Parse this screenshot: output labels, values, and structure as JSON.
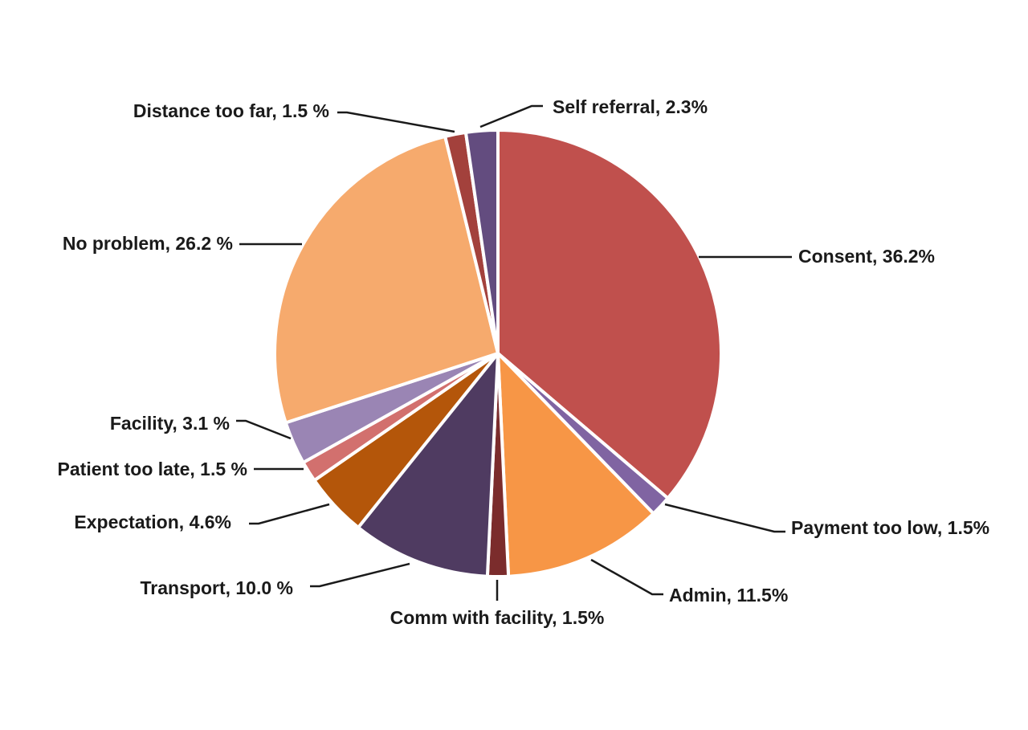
{
  "chart_data": {
    "type": "pie",
    "title": "",
    "slices": [
      {
        "label": "Consent, 36.2%",
        "value": 36.2,
        "color": "#C0504D"
      },
      {
        "label": "Payment too low, 1.5%",
        "value": 1.5,
        "color": "#8064A2"
      },
      {
        "label": "Admin, 11.5%",
        "value": 11.5,
        "color": "#F79646"
      },
      {
        "label": "Comm with facility, 1.5%",
        "value": 1.5,
        "color": "#7B2C2C"
      },
      {
        "label": "Transport, 10.0 %",
        "value": 10.0,
        "color": "#4F3B61"
      },
      {
        "label": "Expectation, 4.6%",
        "value": 4.6,
        "color": "#B4560A"
      },
      {
        "label": "Patient too late, 1.5 %",
        "value": 1.5,
        "color": "#D2706E"
      },
      {
        "label": "Facility, 3.1 %",
        "value": 3.1,
        "color": "#9A85B4"
      },
      {
        "label": "No problem, 26.2 %",
        "value": 26.2,
        "color": "#F6AA6D"
      },
      {
        "label": "Distance too far, 1.5 %",
        "value": 1.5,
        "color": "#A3413C"
      },
      {
        "label": "Self referral, 2.3%",
        "value": 2.3,
        "color": "#634C7F"
      }
    ],
    "start_angle_deg": 0,
    "direction": "clockwise",
    "legend": "none"
  }
}
